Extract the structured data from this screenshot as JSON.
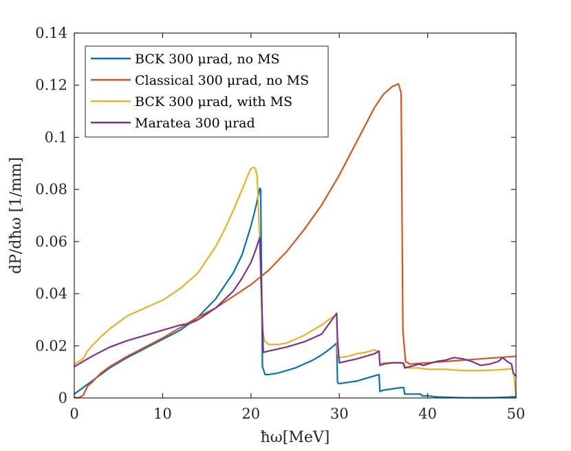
{
  "chart_data": {
    "type": "line",
    "title": "",
    "xlabel": "ħω[MeV]",
    "ylabel": "dP/dħω [1/mm]",
    "xlim": [
      0,
      50
    ],
    "ylim": [
      0,
      0.14
    ],
    "xticks": [
      0,
      10,
      20,
      30,
      40,
      50
    ],
    "yticks": [
      0,
      0.02,
      0.04,
      0.06,
      0.08,
      0.1,
      0.12,
      0.14
    ],
    "xtick_labels": [
      "0",
      "10",
      "20",
      "30",
      "40",
      "50"
    ],
    "ytick_labels": [
      "0",
      "0.02",
      "0.04",
      "0.06",
      "0.08",
      "0.1",
      "0.12",
      "0.14"
    ],
    "grid": false,
    "legend_position": "top-left",
    "series": [
      {
        "name": "BCK 300 μrad, no MS",
        "color": "#0072BD",
        "x": [
          0,
          2,
          4,
          6,
          8,
          10,
          12,
          14,
          16,
          18,
          19,
          20,
          20.6,
          21.0,
          21.1,
          21.3,
          21.6,
          22,
          23,
          24,
          25,
          26,
          27,
          28,
          29,
          29.7,
          29.8,
          30,
          31,
          32,
          33,
          34,
          34.5,
          34.6,
          35,
          36,
          37,
          37.3,
          37.4,
          38,
          39,
          39.2,
          39.4,
          40,
          41,
          42,
          43,
          44,
          45,
          46,
          47,
          48,
          49,
          49.9,
          50
        ],
        "y": [
          0.0015,
          0.0065,
          0.0115,
          0.0155,
          0.019,
          0.0225,
          0.026,
          0.031,
          0.038,
          0.048,
          0.055,
          0.066,
          0.074,
          0.0805,
          0.08,
          0.012,
          0.009,
          0.009,
          0.0095,
          0.0105,
          0.0115,
          0.013,
          0.0145,
          0.0165,
          0.019,
          0.021,
          0.006,
          0.0055,
          0.006,
          0.0065,
          0.0075,
          0.0085,
          0.009,
          0.0025,
          0.003,
          0.0035,
          0.004,
          0.004,
          0.0015,
          0.0015,
          0.0015,
          0.0015,
          0.0008,
          0.0008,
          0.0004,
          0.0003,
          0.0002,
          0.0001,
          0.0001,
          0.0001,
          0.0001,
          0.0002,
          0.0003,
          0.0005,
          0.0001
        ]
      },
      {
        "name": "Classical 300 μrad, no MS",
        "color": "#D95319",
        "x": [
          0,
          0.5,
          1,
          1.5,
          2,
          3,
          4,
          6,
          8,
          10,
          12,
          14,
          16,
          18,
          20,
          22,
          24,
          26,
          28,
          30,
          32,
          34,
          35,
          36,
          36.7,
          37.0,
          37.2,
          37.5,
          38,
          40,
          42,
          44,
          46,
          48,
          50
        ],
        "y": [
          0.0002,
          0.0001,
          0.001,
          0.0045,
          0.006,
          0.0095,
          0.012,
          0.016,
          0.0195,
          0.023,
          0.027,
          0.031,
          0.0345,
          0.039,
          0.0435,
          0.049,
          0.056,
          0.0645,
          0.074,
          0.0855,
          0.0985,
          0.1115,
          0.1165,
          0.1195,
          0.1205,
          0.117,
          0.026,
          0.014,
          0.013,
          0.0135,
          0.014,
          0.0145,
          0.015,
          0.0155,
          0.016
        ]
      },
      {
        "name": "BCK 300 μrad, with MS",
        "color": "#EDB120",
        "x": [
          0,
          0.5,
          1,
          1.5,
          2,
          3,
          4,
          6,
          8,
          10,
          12,
          14,
          16,
          17,
          18,
          19,
          19.6,
          20,
          20.3,
          20.5,
          20.7,
          21.0,
          21.2,
          21.3,
          21.5,
          22,
          23,
          24,
          25,
          26,
          27,
          28,
          29,
          29.7,
          29.8,
          30,
          31,
          32,
          33,
          34,
          34.5,
          34.6,
          35,
          36,
          37,
          37.3,
          37.4,
          38,
          39,
          40,
          42,
          44,
          46,
          48,
          49.6,
          49.8,
          50
        ],
        "y": [
          0.013,
          0.014,
          0.015,
          0.018,
          0.02,
          0.0235,
          0.0265,
          0.0315,
          0.0345,
          0.0375,
          0.042,
          0.048,
          0.058,
          0.0645,
          0.072,
          0.08,
          0.085,
          0.088,
          0.0885,
          0.088,
          0.085,
          0.06,
          0.035,
          0.027,
          0.022,
          0.0205,
          0.0205,
          0.021,
          0.0225,
          0.024,
          0.026,
          0.028,
          0.0305,
          0.032,
          0.017,
          0.0155,
          0.016,
          0.017,
          0.0175,
          0.0185,
          0.0175,
          0.013,
          0.0135,
          0.0135,
          0.0135,
          0.0135,
          0.012,
          0.0115,
          0.0115,
          0.011,
          0.011,
          0.0105,
          0.0105,
          0.0108,
          0.0112,
          0.008,
          0.0
        ]
      },
      {
        "name": "Maratea 300 μrad",
        "color": "#7E2F8E",
        "x": [
          0,
          2,
          4,
          6,
          8,
          10,
          12,
          13,
          14,
          16,
          18,
          19,
          20,
          20.5,
          21.0,
          21.2,
          21.4,
          22,
          24,
          26,
          28,
          29.7,
          29.8,
          30,
          32,
          34,
          34.5,
          34.6,
          35,
          36,
          37,
          37.3,
          37.4,
          38,
          39,
          39.5,
          40,
          41,
          42,
          43,
          44,
          45,
          46,
          47,
          48,
          48.5,
          49,
          49.5,
          49.7,
          50
        ],
        "y": [
          0.012,
          0.016,
          0.0195,
          0.022,
          0.024,
          0.026,
          0.028,
          0.0285,
          0.03,
          0.0345,
          0.041,
          0.046,
          0.052,
          0.0565,
          0.0615,
          0.04,
          0.0175,
          0.018,
          0.0195,
          0.0215,
          0.0245,
          0.0325,
          0.0225,
          0.0135,
          0.015,
          0.017,
          0.018,
          0.0125,
          0.013,
          0.0135,
          0.0135,
          0.013,
          0.0115,
          0.012,
          0.013,
          0.0125,
          0.013,
          0.014,
          0.0145,
          0.0155,
          0.015,
          0.014,
          0.0125,
          0.013,
          0.014,
          0.0155,
          0.014,
          0.013,
          0.0095,
          0.0085
        ]
      }
    ]
  }
}
